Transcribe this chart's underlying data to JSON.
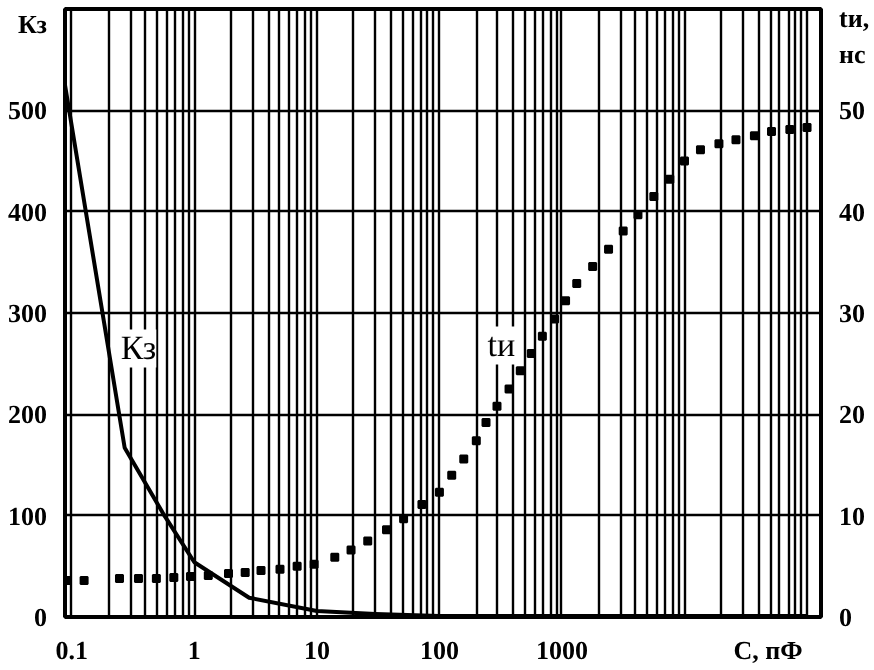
{
  "chart_data": {
    "type": "line",
    "xlabel": "С, пФ",
    "ylabel": "Кз",
    "y2label": "tи, нс",
    "log": "x",
    "grid": true,
    "xlim": [
      0.088,
      130000
    ],
    "ylim": [
      0,
      600
    ],
    "y2lim": [
      0,
      60
    ],
    "xticks": [
      {
        "value": 0.1,
        "label": "0.1"
      },
      {
        "value": 0.2,
        "label": null
      },
      {
        "value": 0.3,
        "label": null
      },
      {
        "value": 0.4,
        "label": null
      },
      {
        "value": 0.5,
        "label": null
      },
      {
        "value": 0.6,
        "label": null
      },
      {
        "value": 0.7,
        "label": null
      },
      {
        "value": 0.8,
        "label": null
      },
      {
        "value": 0.9,
        "label": null
      },
      {
        "value": 1,
        "label": "1"
      },
      {
        "value": 2,
        "label": null
      },
      {
        "value": 3,
        "label": null
      },
      {
        "value": 4,
        "label": null
      },
      {
        "value": 5,
        "label": null
      },
      {
        "value": 6,
        "label": null
      },
      {
        "value": 7,
        "label": null
      },
      {
        "value": 8,
        "label": null
      },
      {
        "value": 9,
        "label": null
      },
      {
        "value": 10,
        "label": "10"
      },
      {
        "value": 20,
        "label": null
      },
      {
        "value": 30,
        "label": null
      },
      {
        "value": 40,
        "label": null
      },
      {
        "value": 50,
        "label": null
      },
      {
        "value": 60,
        "label": null
      },
      {
        "value": 70,
        "label": null
      },
      {
        "value": 80,
        "label": null
      },
      {
        "value": 90,
        "label": null
      },
      {
        "value": 100,
        "label": "100"
      },
      {
        "value": 200,
        "label": null
      },
      {
        "value": 300,
        "label": null
      },
      {
        "value": 400,
        "label": null
      },
      {
        "value": 500,
        "label": null
      },
      {
        "value": 600,
        "label": null
      },
      {
        "value": 700,
        "label": null
      },
      {
        "value": 800,
        "label": null
      },
      {
        "value": 900,
        "label": null
      },
      {
        "value": 1000,
        "label": "1000"
      },
      {
        "value": 2000,
        "label": null
      },
      {
        "value": 3000,
        "label": null
      },
      {
        "value": 4000,
        "label": null
      },
      {
        "value": 5000,
        "label": null
      },
      {
        "value": 6000,
        "label": null
      },
      {
        "value": 7000,
        "label": null
      },
      {
        "value": 8000,
        "label": null
      },
      {
        "value": 9000,
        "label": null
      },
      {
        "value": 10000,
        "label": null
      },
      {
        "value": 20000,
        "label": null
      },
      {
        "value": 30000,
        "label": null
      },
      {
        "value": 40000,
        "label": null
      },
      {
        "value": 50000,
        "label": null
      },
      {
        "value": 60000,
        "label": null
      },
      {
        "value": 70000,
        "label": null
      },
      {
        "value": 80000,
        "label": null
      },
      {
        "value": 90000,
        "label": null
      },
      {
        "value": 100000,
        "label": null
      }
    ],
    "yticks": [
      0,
      100,
      200,
      300,
      400,
      500
    ],
    "y2ticks": [
      0,
      10,
      20,
      30,
      40,
      50
    ],
    "series": [
      {
        "color": "#000000",
        "x": [
          0.088,
          0.27,
          0.57,
          1,
          2.8,
          10,
          30,
          100,
          1000,
          100000
        ],
        "values": [
          525,
          167,
          100,
          54,
          19,
          6,
          3,
          1,
          1,
          1
        ]
      },
      {
        "type": "scatter",
        "axis": "y2",
        "marker": "square",
        "color": "#000000",
        "x": [
          0.091,
          0.126,
          0.245,
          0.35,
          0.49,
          0.68,
          0.93,
          1.3,
          1.9,
          2.6,
          3.5,
          5.0,
          6.9,
          9.5,
          14,
          19,
          26,
          37,
          51,
          72,
          100,
          126,
          158,
          200,
          240,
          295,
          370,
          457,
          562,
          692,
          871,
          1070,
          1320,
          1780,
          2400,
          3160,
          4170,
          5620,
          7590,
          10000,
          13500,
          19100,
          26300,
          37200,
          51300,
          72400,
          100000
        ],
        "values": [
          3.6,
          3.6,
          3.8,
          3.8,
          3.8,
          3.9,
          4.0,
          4.1,
          4.3,
          4.4,
          4.6,
          4.7,
          5.0,
          5.2,
          5.9,
          6.6,
          7.5,
          8.6,
          9.7,
          11.1,
          12.3,
          14.0,
          15.6,
          17.4,
          19.2,
          20.8,
          22.5,
          24.3,
          26.0,
          27.7,
          29.4,
          31.2,
          32.9,
          34.6,
          36.3,
          38.1,
          39.7,
          41.5,
          43.2,
          45.0,
          46.1,
          46.7,
          47.1,
          47.5,
          47.9,
          48.1,
          48.3
        ]
      }
    ],
    "annotations": [
      {
        "text": "Кз",
        "x": 0.35,
        "y": 265
      },
      {
        "text": "tи",
        "x": 320,
        "y": 268
      }
    ]
  }
}
